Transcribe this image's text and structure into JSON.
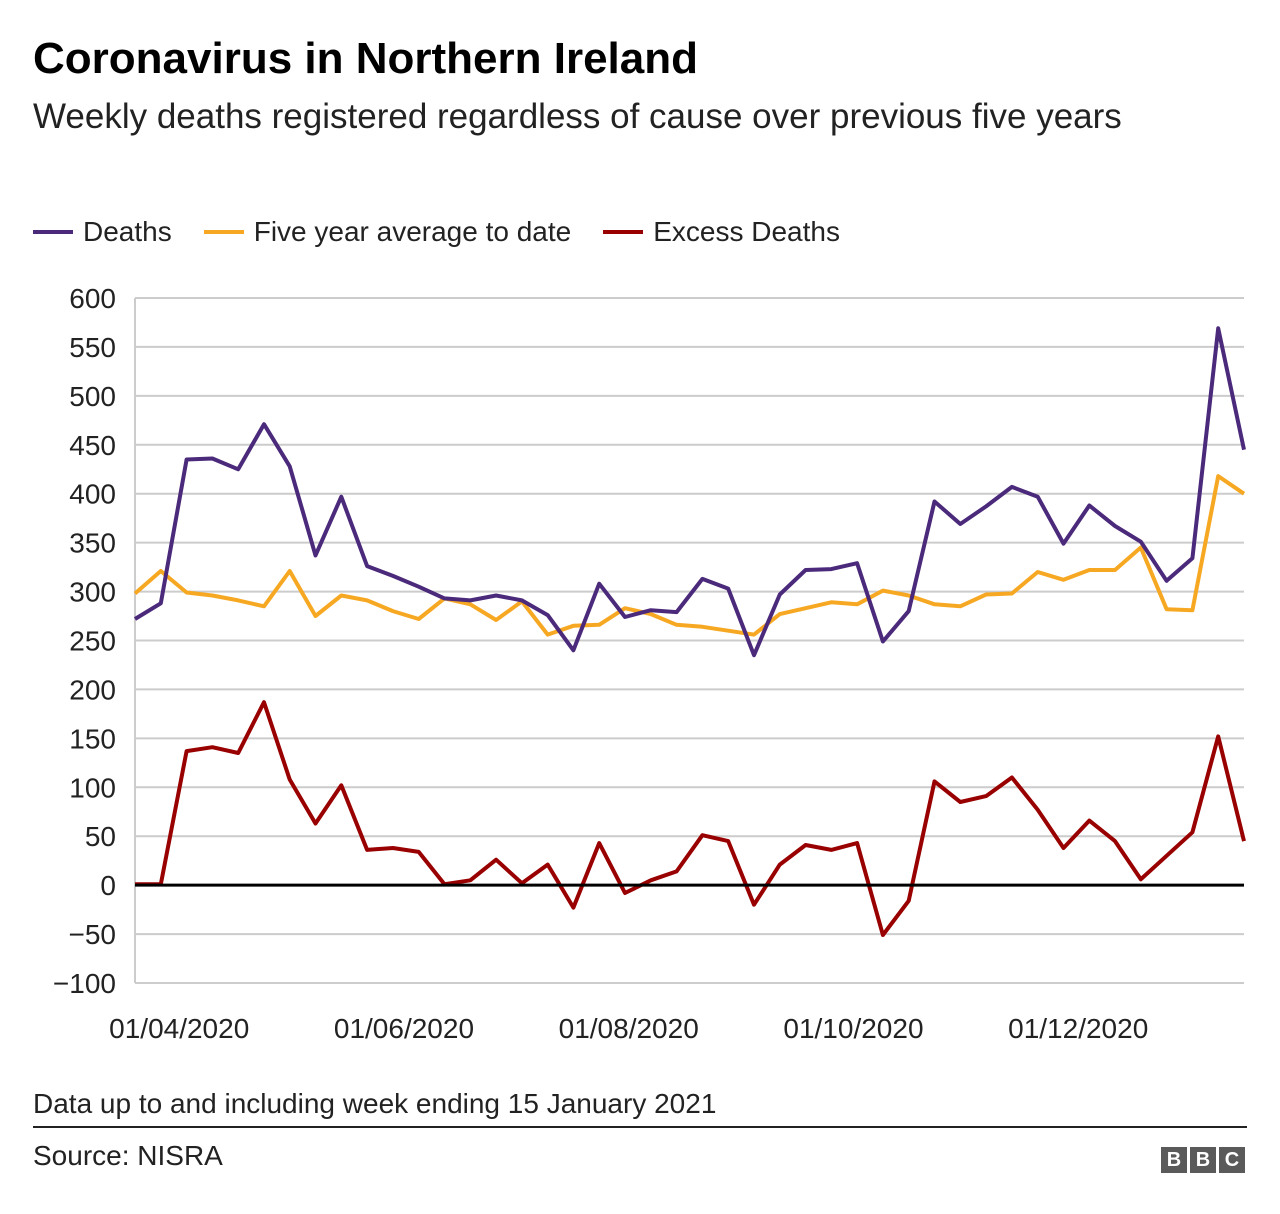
{
  "header": {
    "title": "Coronavirus in Northern Ireland",
    "subtitle": "Weekly deaths registered regardless of cause over previous five years"
  },
  "footer": {
    "note": "Data up to and including week ending 15 January 2021",
    "source": "Source: NISRA",
    "logo_letters": [
      "B",
      "B",
      "C"
    ]
  },
  "colors": {
    "deaths": "#4b2a7b",
    "average": "#f7a823",
    "excess": "#990000",
    "grid": "#cccccc",
    "zero_line": "#000000"
  },
  "chart_data": {
    "type": "line",
    "title": "Coronavirus in Northern Ireland",
    "subtitle": "Weekly deaths registered regardless of cause over previous five years",
    "xlabel": "",
    "ylabel": "",
    "ylim": [
      -100,
      600
    ],
    "yticks": [
      600,
      550,
      500,
      450,
      400,
      350,
      300,
      250,
      200,
      150,
      100,
      50,
      0,
      -50,
      -100
    ],
    "xticks": [
      "01/04/2020",
      "01/06/2020",
      "01/08/2020",
      "01/10/2020",
      "01/12/2020"
    ],
    "grid": true,
    "legend_position": "top-left",
    "x": [
      "2020-03-20",
      "2020-03-27",
      "2020-04-03",
      "2020-04-10",
      "2020-04-17",
      "2020-04-24",
      "2020-05-01",
      "2020-05-08",
      "2020-05-15",
      "2020-05-22",
      "2020-05-29",
      "2020-06-05",
      "2020-06-12",
      "2020-06-19",
      "2020-06-26",
      "2020-07-03",
      "2020-07-10",
      "2020-07-17",
      "2020-07-24",
      "2020-07-31",
      "2020-08-07",
      "2020-08-14",
      "2020-08-21",
      "2020-08-28",
      "2020-09-04",
      "2020-09-11",
      "2020-09-18",
      "2020-09-25",
      "2020-10-02",
      "2020-10-09",
      "2020-10-16",
      "2020-10-23",
      "2020-10-30",
      "2020-11-06",
      "2020-11-13",
      "2020-11-20",
      "2020-11-27",
      "2020-12-04",
      "2020-12-11",
      "2020-12-18",
      "2020-12-25",
      "2021-01-01",
      "2021-01-08",
      "2021-01-15"
    ],
    "series": [
      {
        "name": "Deaths",
        "color": "#4b2a7b",
        "values": [
          272,
          288,
          435,
          436,
          425,
          471,
          428,
          337,
          397,
          326,
          316,
          305,
          293,
          291,
          296,
          291,
          276,
          240,
          308,
          274,
          281,
          279,
          313,
          303,
          235,
          297,
          322,
          323,
          329,
          249,
          280,
          392,
          369,
          387,
          407,
          397,
          349,
          388,
          367,
          351,
          311,
          334,
          569,
          445
        ]
      },
      {
        "name": "Five year average to date",
        "color": "#f7a823",
        "values": [
          298,
          321,
          299,
          296,
          291,
          285,
          321,
          275,
          296,
          291,
          280,
          272,
          293,
          287,
          271,
          290,
          256,
          265,
          266,
          283,
          277,
          266,
          264,
          260,
          256,
          277,
          283,
          289,
          287,
          301,
          296,
          287,
          285,
          297,
          298,
          320,
          312,
          322,
          322,
          345,
          282,
          281,
          418,
          400
        ]
      },
      {
        "name": "Excess Deaths",
        "color": "#990000",
        "values": [
          1,
          1,
          137,
          141,
          135,
          187,
          108,
          63,
          102,
          36,
          38,
          34,
          1,
          5,
          26,
          2,
          21,
          -23,
          43,
          -8,
          5,
          14,
          51,
          45,
          -20,
          21,
          41,
          36,
          43,
          -51,
          -16,
          106,
          85,
          91,
          110,
          77,
          38,
          66,
          45,
          6,
          30,
          54,
          152,
          45
        ]
      }
    ]
  }
}
